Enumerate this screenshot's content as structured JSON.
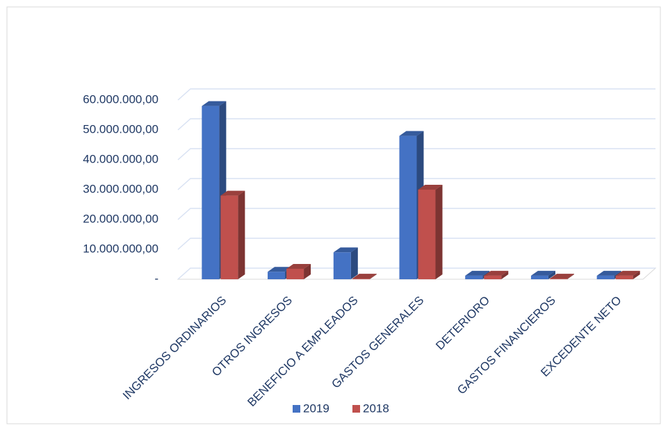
{
  "chart_data": {
    "type": "bar3d",
    "categories": [
      "INGRESOS ORDINARIOS",
      "OTROS INGRESOS",
      "BENEFICIO A EMPLEADOS",
      "GASTOS GENERALES",
      "DETERIORO",
      "GASTOS FINANCIEROS",
      "EXCEDENTE NETO"
    ],
    "series": [
      {
        "name": "2019",
        "color": "#4472c4",
        "values": [
          58000000,
          2500000,
          9000000,
          48000000,
          1200000,
          1200000,
          1200000
        ]
      },
      {
        "name": "2018",
        "color": "#c0504d",
        "values": [
          28000000,
          3500000,
          200000,
          30000000,
          1200000,
          200000,
          1200000
        ]
      }
    ],
    "ylim": [
      0,
      60000000
    ],
    "yticks": [
      {
        "value": 0,
        "label": "-"
      },
      {
        "value": 10000000,
        "label": "10.000.000,00"
      },
      {
        "value": 20000000,
        "label": "20.000.000,00"
      },
      {
        "value": 30000000,
        "label": "30.000.000,00"
      },
      {
        "value": 40000000,
        "label": "40.000.000,00"
      },
      {
        "value": 50000000,
        "label": "50.000.000,00"
      },
      {
        "value": 60000000,
        "label": "60.000.000,00"
      }
    ],
    "grid": true,
    "legend": "bottom"
  }
}
